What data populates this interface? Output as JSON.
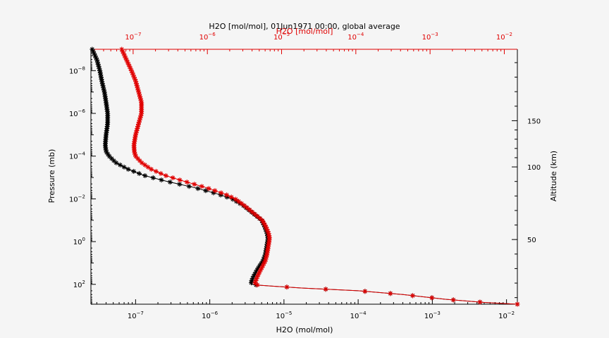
{
  "chart_data": {
    "type": "line",
    "title": "H2O [mol/mol], 01Jun1971 00:00, global average",
    "xlabel": "H2O (mol/mol)",
    "xlabel_top": "H2O [mol/mol]",
    "ylabel": "Pressure (mb)",
    "ylabel_right": "Altitude (km)",
    "x_scale": "log",
    "y_scale": "log",
    "y_inverted": true,
    "xlim": [
      2.5e-08,
      0.014
    ],
    "xlim_top": [
      2.7e-08,
      0.015
    ],
    "ylim": [
      1e-09,
      850
    ],
    "colors": {
      "black": "#000000",
      "red": "#e00000",
      "axis_red": "#e00000"
    },
    "x_ticks": [
      {
        "value": 1e-07,
        "label_base": "10",
        "label_exp": "−7"
      },
      {
        "value": 1e-06,
        "label_base": "10",
        "label_exp": "−6"
      },
      {
        "value": 1e-05,
        "label_base": "10",
        "label_exp": "−5"
      },
      {
        "value": 0.0001,
        "label_base": "10",
        "label_exp": "−4"
      },
      {
        "value": 0.001,
        "label_base": "10",
        "label_exp": "−3"
      },
      {
        "value": 0.01,
        "label_base": "10",
        "label_exp": "−2"
      }
    ],
    "y_ticks": [
      {
        "value": 1e-08,
        "label_base": "10",
        "label_exp": "−8"
      },
      {
        "value": 1e-06,
        "label_base": "10",
        "label_exp": "−6"
      },
      {
        "value": 0.0001,
        "label_base": "10",
        "label_exp": "−4"
      },
      {
        "value": 0.01,
        "label_base": "10",
        "label_exp": "−2"
      },
      {
        "value": 1,
        "label_base": "10",
        "label_exp": "0"
      },
      {
        "value": 100,
        "label_base": "10",
        "label_exp": "2"
      }
    ],
    "altitude_ticks": [
      {
        "value": 150,
        "label": "150",
        "pressure": 2.2e-06
      },
      {
        "value": 100,
        "label": "100",
        "pressure": 0.00032
      },
      {
        "value": 50,
        "label": "50",
        "pressure": 0.8
      }
    ],
    "series": [
      {
        "color": "black",
        "y": [
          1e-09,
          3e-09,
          1e-08,
          3e-08,
          1e-07,
          3e-07,
          1e-06,
          3e-06,
          1e-05,
          3e-05,
          6e-05,
          0.0001,
          0.0002,
          0.0004,
          0.0008,
          0.0015,
          0.003,
          0.006,
          0.01,
          0.02,
          0.04,
          0.07,
          0.1,
          0.2,
          0.4,
          0.7,
          1,
          2,
          4,
          8,
          15,
          30,
          50,
          80,
          100,
          110,
          125,
          150,
          200,
          300,
          500,
          700,
          850
        ],
        "x": [
          2.6e-08,
          3e-08,
          3.3e-08,
          3.5e-08,
          3.8e-08,
          4e-08,
          4.2e-08,
          4.2e-08,
          4e-08,
          3.9e-08,
          4e-08,
          4.4e-08,
          5.4e-08,
          7.8e-08,
          1.3e-07,
          2.6e-07,
          6.3e-07,
          1.3e-06,
          2e-06,
          2.8e-06,
          3.6e-06,
          4.4e-06,
          5e-06,
          5.5e-06,
          5.9e-06,
          6.1e-06,
          6e-06,
          5.8e-06,
          5.6e-06,
          5.2e-06,
          4.6e-06,
          4.1e-06,
          3.8e-06,
          3.6e-06,
          3.7e-06,
          4.5e-06,
          8e-06,
          1.8e-05,
          0.0001,
          0.0004,
          0.0015,
          0.005,
          0.014
        ]
      },
      {
        "color": "red",
        "y": [
          1e-09,
          3e-09,
          1e-08,
          3e-08,
          1e-07,
          3e-07,
          1e-06,
          3e-06,
          1e-05,
          3e-05,
          6e-05,
          0.0001,
          0.0002,
          0.0004,
          0.0008,
          0.0015,
          0.003,
          0.006,
          0.01,
          0.02,
          0.04,
          0.07,
          0.1,
          0.2,
          0.4,
          0.7,
          1,
          2,
          4,
          8,
          15,
          30,
          50,
          80,
          100,
          110,
          125,
          150,
          200,
          300,
          500,
          700,
          850
        ],
        "x": [
          6.5e-08,
          7.5e-08,
          8.8e-08,
          1e-07,
          1.1e-07,
          1.2e-07,
          1.2e-07,
          1.1e-07,
          1e-07,
          9.5e-08,
          9.6e-08,
          1e-07,
          1.2e-07,
          1.6e-07,
          2.5e-07,
          4.5e-07,
          9e-07,
          1.6e-06,
          2.2e-06,
          2.9e-06,
          3.7e-06,
          4.5e-06,
          5.1e-06,
          5.7e-06,
          6.2e-06,
          6.4e-06,
          6.3e-06,
          6.1e-06,
          5.9e-06,
          5.6e-06,
          5.1e-06,
          4.6e-06,
          4.3e-06,
          4.1e-06,
          4e-06,
          4.6e-06,
          8e-06,
          1.8e-05,
          0.0001,
          0.0004,
          0.0015,
          0.005,
          0.014
        ]
      }
    ]
  }
}
